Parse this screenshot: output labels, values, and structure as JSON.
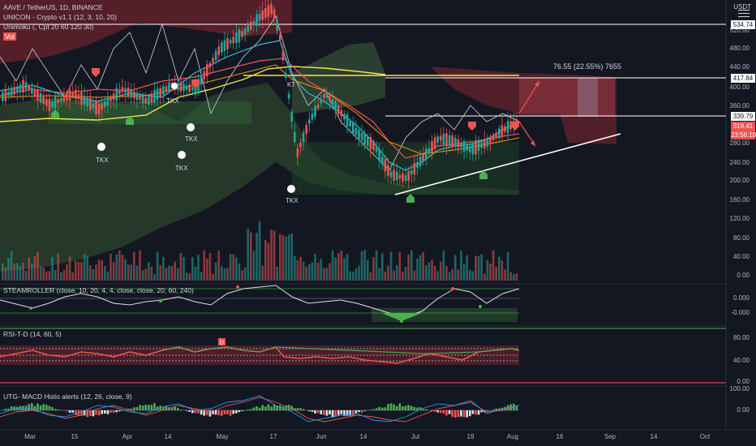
{
  "header": {
    "symbol_line": "AAVE / TetherUS, 1D, BINANCE",
    "indicator_1": "UNICON - Crypto v1.1 (12, 3, 10, 20)",
    "indicator_2": "Unimoku (, Cpt 20 60 120 30)",
    "indicator_3": "Vol"
  },
  "currency": "USDT",
  "price_axis": [
    "560.00",
    "520.00",
    "480.00",
    "440.00",
    "400.00",
    "360.00",
    "320.00",
    "280.00",
    "240.00",
    "200.00",
    "160.00",
    "120.00",
    "80.00",
    "40.00",
    "0.00"
  ],
  "price_labels": {
    "p1": "534.74",
    "p2": "417.84",
    "p3": "339.79",
    "last": "319.41",
    "countdown": "23:56:18"
  },
  "measure_label": "76.55 (22.55%) 7655",
  "tkx_labels": [
    "TKX",
    "TKX",
    "TKX",
    "TKX",
    "TKX"
  ],
  "kt_label": "KT",
  "panes": {
    "steamroller": {
      "title": "STEAMROLLER (close, 10, 20, 4, 4, close, close, 20, 60, 240)",
      "ticks": [
        "0.000",
        "-0.000"
      ]
    },
    "rsi": {
      "title": "RSI-T-D (14, 60, 5)",
      "ticks": [
        "80.00",
        "40.00",
        "0.00"
      ],
      "marker": "D"
    },
    "macd": {
      "title": "UTG- MACD Histo alerts (12, 26, close, 9)",
      "ticks": [
        "100.00",
        "0.00"
      ]
    }
  },
  "time_axis": [
    "Mar",
    "15",
    "Apr",
    "14",
    "May",
    "17",
    "Jun",
    "14",
    "Jul",
    "19",
    "Aug",
    "16",
    "Sep",
    "14",
    "Oct"
  ],
  "colors": {
    "background": "#131722",
    "up": "#26a69a",
    "down": "#ef5350",
    "trendline": "#ffffff",
    "yellow": "#f5e642"
  },
  "chart_data": {
    "type": "candlestick",
    "symbol": "AAVE / TetherUS",
    "timeframe": "1D",
    "exchange": "BINANCE",
    "ylim": [
      0,
      560
    ],
    "last_price": 319.41,
    "levels": [
      534.74,
      417.84,
      339.79
    ],
    "measure": {
      "change": 76.55,
      "percent": 22.55
    }
  }
}
